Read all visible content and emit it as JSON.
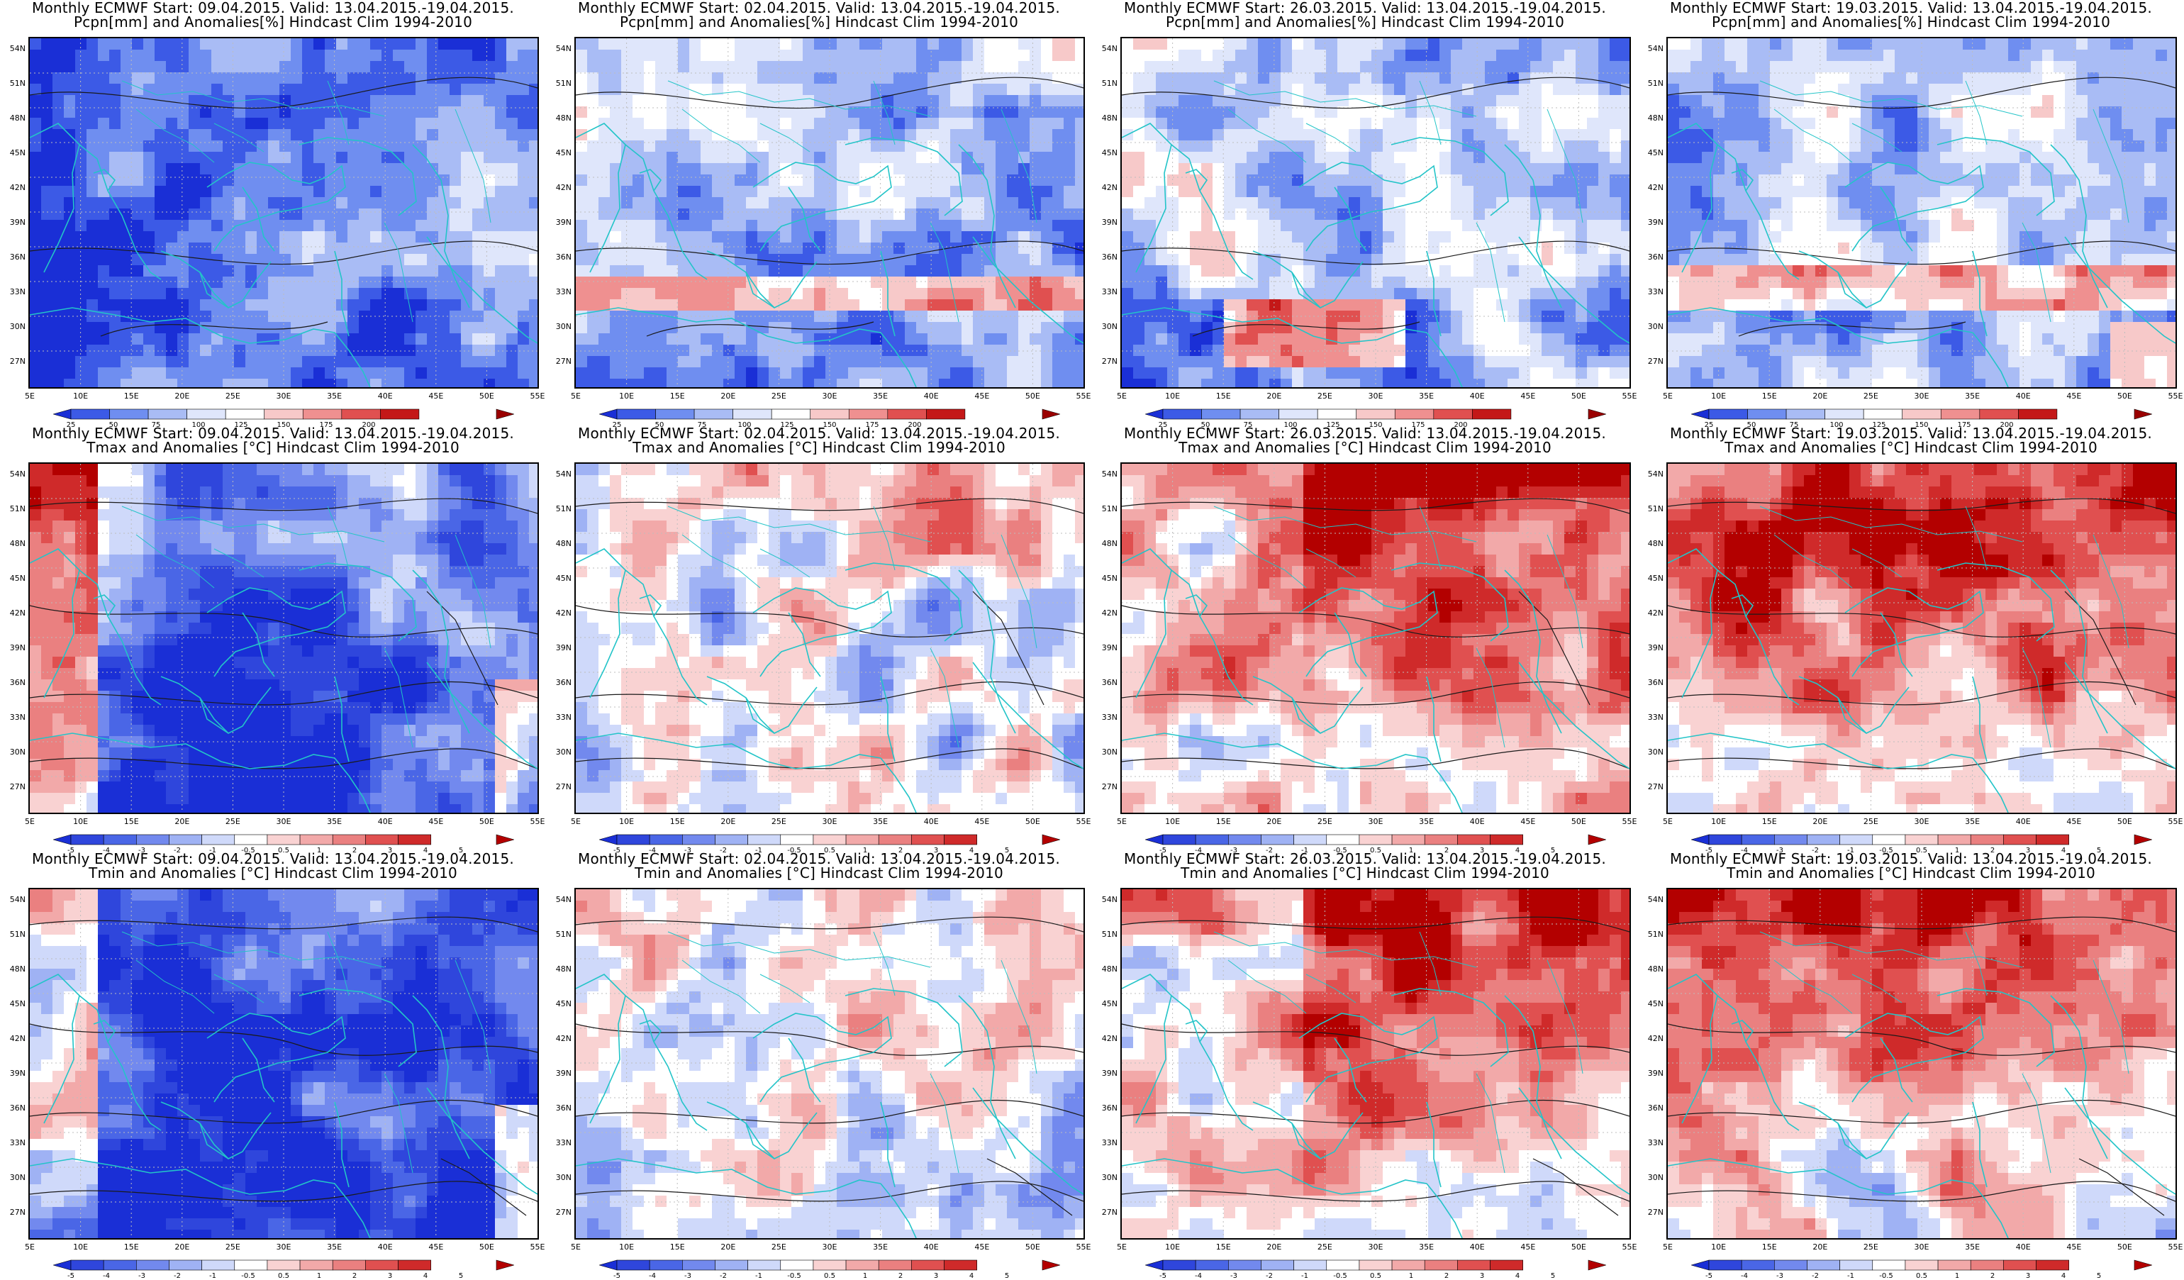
{
  "panels": [
    {
      "line1": "Monthly ECMWF Start: 09.04.2015. Valid: 13.04.2015.-19.04.2015.",
      "line2": "Pcpn[mm] and Anomalies[%] Hindcast Clim 1994-2010",
      "var": "pcpn",
      "scheme": 0
    },
    {
      "line1": "Monthly ECMWF Start: 02.04.2015. Valid: 13.04.2015.-19.04.2015.",
      "line2": "Pcpn[mm] and Anomalies[%] Hindcast Clim 1994-2010",
      "var": "pcpn",
      "scheme": 1
    },
    {
      "line1": "Monthly ECMWF Start: 26.03.2015. Valid: 13.04.2015.-19.04.2015.",
      "line2": "Pcpn[mm] and Anomalies[%] Hindcast Clim 1994-2010",
      "var": "pcpn",
      "scheme": 2
    },
    {
      "line1": "Monthly ECMWF Start: 19.03.2015. Valid: 13.04.2015.-19.04.2015.",
      "line2": "Pcpn[mm] and Anomalies[%] Hindcast Clim 1994-2010",
      "var": "pcpn",
      "scheme": 3
    },
    {
      "line1": "Monthly ECMWF Start: 09.04.2015. Valid: 13.04.2015.-19.04.2015.",
      "line2": "Tmax and Anomalies [°C] Hindcast Clim 1994-2010",
      "var": "tmax",
      "scheme": 0
    },
    {
      "line1": "Monthly ECMWF Start: 02.04.2015. Valid: 13.04.2015.-19.04.2015.",
      "line2": "Tmax and Anomalies [°C] Hindcast Clim 1994-2010",
      "var": "tmax",
      "scheme": 1
    },
    {
      "line1": "Monthly ECMWF Start: 26.03.2015. Valid: 13.04.2015.-19.04.2015.",
      "line2": "Tmax and Anomalies [°C] Hindcast Clim 1994-2010",
      "var": "tmax",
      "scheme": 2
    },
    {
      "line1": "Monthly ECMWF Start: 19.03.2015. Valid: 13.04.2015.-19.04.2015.",
      "line2": "Tmax and Anomalies [°C] Hindcast Clim 1994-2010",
      "var": "tmax",
      "scheme": 3
    },
    {
      "line1": "Monthly ECMWF Start: 09.04.2015. Valid: 13.04.2015.-19.04.2015.",
      "line2": "Tmin and Anomalies [°C] Hindcast Clim 1994-2010",
      "var": "tmin",
      "scheme": 0
    },
    {
      "line1": "Monthly ECMWF Start: 02.04.2015. Valid: 13.04.2015.-19.04.2015.",
      "line2": "Tmin and Anomalies [°C] Hindcast Clim 1994-2010",
      "var": "tmin",
      "scheme": 1
    },
    {
      "line1": "Monthly ECMWF Start: 26.03.2015. Valid: 13.04.2015.-19.04.2015.",
      "line2": "Tmin and Anomalies [°C] Hindcast Clim 1994-2010",
      "var": "tmin",
      "scheme": 2
    },
    {
      "line1": "Monthly ECMWF Start: 19.03.2015. Valid: 13.04.2015.-19.04.2015.",
      "line2": "Tmin and Anomalies [°C] Hindcast Clim 1994-2010",
      "var": "tmin",
      "scheme": 3
    }
  ],
  "lat_labels": [
    "54N",
    "51N",
    "48N",
    "45N",
    "42N",
    "39N",
    "36N",
    "33N",
    "30N",
    "27N"
  ],
  "lon_labels": [
    "5E",
    "10E",
    "15E",
    "20E",
    "25E",
    "30E",
    "35E",
    "40E",
    "45E",
    "50E",
    "55E"
  ],
  "pcpn_ticks": [
    "25",
    "50",
    "75",
    "100",
    "125",
    "150",
    "175",
    "200"
  ],
  "temp_ticks": [
    "-5",
    "-4",
    "-3",
    "-2",
    "-1",
    "-0.5",
    "0.5",
    "1",
    "2",
    "3",
    "4",
    "5"
  ],
  "pcpn_colors": [
    "#1a2fd6",
    "#3c5ae6",
    "#6f8ef0",
    "#a9bcf5",
    "#dfe6fb",
    "#ffffff",
    "#f7c9c9",
    "#ef9090",
    "#e05050",
    "#c41818",
    "#9a0000"
  ],
  "temp_colors": [
    "#1a2fd6",
    "#2f46dc",
    "#4a66e6",
    "#7289ee",
    "#9fb2f4",
    "#cfd9fa",
    "#ffffff",
    "#f9d2d2",
    "#f2a9a9",
    "#ea8080",
    "#e05050",
    "#cf2a2a",
    "#b30000"
  ],
  "map_colors": {
    "coast": "#23c4c8",
    "contour": "#1a1a1a",
    "grid": "#bdbdbd"
  }
}
